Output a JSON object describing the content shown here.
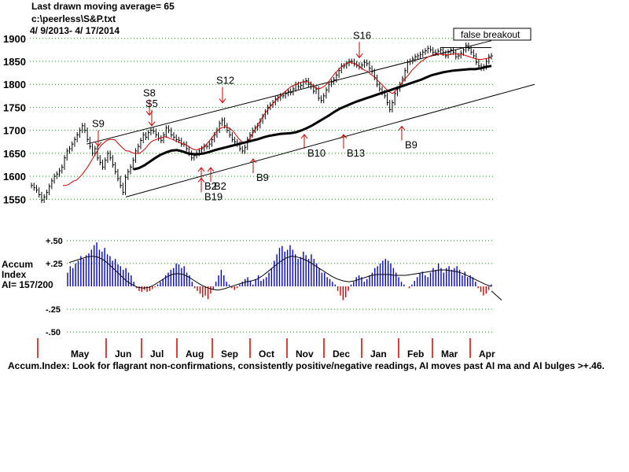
{
  "header": {
    "line1": "Last drawn moving average= 65",
    "line2": "c:\\peerless\\S&P.txt",
    "line3": " 4/ 9/2013-  4/ 17/2014"
  },
  "footer": "Accum.Index: Look for flagrant non-confirmations, consistently positive/negative readings, AI moves past AI ma and AI bulges >+.46.",
  "colors": {
    "price": "#000000",
    "ma_short": "#cc0000",
    "ma_long": "#000000",
    "grid": "#009900",
    "accum_pos": "#0000cc",
    "accum_neg": "#cc0000",
    "month_tick": "#cc0000"
  },
  "chart_data": [
    {
      "type": "line",
      "y_ticks": [
        1550,
        1600,
        1650,
        1700,
        1750,
        1800,
        1850,
        1900
      ],
      "ylim": [
        1530,
        1915
      ],
      "grid": true,
      "annotations": {
        "sells": [
          {
            "label": "S9",
            "x": 125,
            "y": 1666
          },
          {
            "label": "S8",
            "x": 190,
            "y": 1733
          },
          {
            "label": "S5",
            "x": 193,
            "y": 1710
          },
          {
            "label": "S12",
            "x": 283,
            "y": 1760
          },
          {
            "label": "S16",
            "x": 457,
            "y": 1858
          }
        ],
        "buys": [
          {
            "label": "B2",
            "x": 256,
            "y": 1588
          },
          {
            "label": "B2",
            "x": 268,
            "y": 1588
          },
          {
            "label": "B19",
            "x": 256,
            "y": 1565
          },
          {
            "label": "B9",
            "x": 322,
            "y": 1607
          },
          {
            "label": "B10",
            "x": 387,
            "y": 1660
          },
          {
            "label": "B13",
            "x": 437,
            "y": 1660
          },
          {
            "label": "B9",
            "x": 511,
            "y": 1678
          }
        ],
        "false_breakout": "false breakout"
      },
      "series": [
        {
          "values": [
            1580,
            1575,
            1570,
            1560,
            1548,
            1555,
            1565,
            1578,
            1590,
            1600,
            1605,
            1612,
            1620,
            1640,
            1655,
            1660,
            1670,
            1680,
            1690,
            1700,
            1710,
            1700,
            1680,
            1665,
            1650,
            1660,
            1640,
            1630,
            1620,
            1635,
            1650,
            1640,
            1625,
            1610,
            1595,
            1580,
            1565,
            1598,
            1610,
            1620,
            1635,
            1655,
            1665,
            1678,
            1690,
            1685,
            1695,
            1700,
            1698,
            1690,
            1683,
            1678,
            1690,
            1705,
            1700,
            1690,
            1685,
            1680,
            1678,
            1670,
            1670,
            1660,
            1650,
            1640,
            1645,
            1650,
            1655,
            1660,
            1665,
            1665,
            1670,
            1680,
            1690,
            1700,
            1715,
            1722,
            1710,
            1700,
            1690,
            1680,
            1675,
            1670,
            1660,
            1655,
            1663,
            1680,
            1690,
            1700,
            1705,
            1710,
            1720,
            1730,
            1740,
            1750,
            1755,
            1760,
            1768,
            1770,
            1775,
            1775,
            1780,
            1785,
            1782,
            1790,
            1800,
            1795,
            1798,
            1805,
            1808,
            1800,
            1795,
            1785,
            1790,
            1770,
            1765,
            1775,
            1788,
            1800,
            1805,
            1810,
            1820,
            1830,
            1840,
            1840,
            1845,
            1850,
            1850,
            1845,
            1842,
            1838,
            1842,
            1848,
            1845,
            1835,
            1828,
            1815,
            1800,
            1790,
            1782,
            1775,
            1760,
            1745,
            1760,
            1780,
            1790,
            1800,
            1812,
            1830,
            1848,
            1850,
            1855,
            1860,
            1862,
            1865,
            1870,
            1873,
            1878,
            1875,
            1870,
            1868,
            1872,
            1875,
            1868,
            1862,
            1870,
            1875,
            1870,
            1860,
            1862,
            1868,
            1875,
            1885,
            1878,
            1870,
            1862,
            1848,
            1840,
            1835,
            1838,
            1850,
            1860,
            1862
          ],
          "x_range": [
            40,
            625
          ]
        },
        {
          "values": [
            1580,
            1580,
            1582,
            1586,
            1590,
            1592,
            1598,
            1604,
            1612,
            1620,
            1630,
            1640,
            1650,
            1660,
            1668,
            1673,
            1678,
            1680,
            1680,
            1679,
            1672,
            1666,
            1660,
            1655,
            1655,
            1652,
            1650,
            1650,
            1650,
            1655,
            1660,
            1668,
            1674,
            1678,
            1680,
            1682,
            1684,
            1686,
            1685,
            1682,
            1680,
            1677,
            1675,
            1672,
            1670,
            1668,
            1664,
            1660,
            1658,
            1658,
            1660,
            1663,
            1668,
            1675,
            1682,
            1690,
            1698,
            1703,
            1706,
            1707,
            1706,
            1703,
            1698,
            1690,
            1682,
            1676,
            1672,
            1674,
            1682,
            1692,
            1702,
            1712,
            1722,
            1732,
            1740,
            1748,
            1755,
            1762,
            1768,
            1774,
            1780,
            1785,
            1790,
            1795,
            1798,
            1800,
            1803,
            1805,
            1806,
            1806,
            1803,
            1798,
            1792,
            1790,
            1792,
            1795,
            1800,
            1808,
            1816,
            1824,
            1830,
            1836,
            1840,
            1845,
            1848,
            1848,
            1845,
            1842,
            1838,
            1834,
            1830,
            1828,
            1822,
            1818,
            1812,
            1806,
            1800,
            1794,
            1788,
            1783,
            1780,
            1785,
            1792,
            1800,
            1808,
            1815,
            1822,
            1830,
            1836,
            1842,
            1848,
            1852,
            1856,
            1860,
            1862,
            1865,
            1866,
            1866,
            1865,
            1864,
            1864,
            1865,
            1866,
            1866,
            1866,
            1865,
            1864,
            1862,
            1860,
            1858,
            1856,
            1855,
            1854,
            1855,
            1856,
            1857,
            1858
          ],
          "x_range": [
            80,
            625
          ],
          "name": "ma_short"
        },
        {
          "values": [
            1615,
            1618,
            1624,
            1632,
            1640,
            1647,
            1652,
            1656,
            1657,
            1654,
            1650,
            1648,
            1648,
            1650,
            1653,
            1657,
            1660,
            1663,
            1666,
            1669,
            1672,
            1675,
            1678,
            1681,
            1685,
            1688,
            1690,
            1692,
            1693,
            1694,
            1696,
            1700,
            1705,
            1711,
            1718,
            1725,
            1732,
            1740,
            1747,
            1752,
            1757,
            1762,
            1766,
            1770,
            1774,
            1778,
            1782,
            1786,
            1790,
            1794,
            1798,
            1802,
            1806,
            1810,
            1815,
            1820,
            1823,
            1826,
            1828,
            1830,
            1831,
            1832,
            1833,
            1833,
            1835,
            1838,
            1840
          ],
          "x_range": [
            170,
            625
          ],
          "name": "ma_long"
        }
      ],
      "channel": {
        "upper": [
          [
            110,
            1670
          ],
          [
            625,
            1895
          ]
        ],
        "lower": [
          [
            160,
            1555
          ],
          [
            680,
            1800
          ]
        ]
      }
    },
    {
      "type": "bar",
      "title": "Accum Index",
      "label_lines": [
        "Accum",
        "Index",
        "AI= 157/200"
      ],
      "y_ticks": [
        0.5,
        0.25,
        -0.25,
        -0.5
      ],
      "y_tick_labels": [
        "+.50",
        "+.25",
        "-.25",
        "-.50"
      ],
      "ylim": [
        -0.55,
        0.55
      ],
      "grid": true,
      "values": [
        0.15,
        0.22,
        0.2,
        0.25,
        0.28,
        0.33,
        0.3,
        0.34,
        0.36,
        0.4,
        0.45,
        0.48,
        0.4,
        0.38,
        0.42,
        0.35,
        0.33,
        0.28,
        0.3,
        0.24,
        0.22,
        0.18,
        0.2,
        0.15,
        0.12,
        0.05,
        -0.02,
        -0.05,
        -0.06,
        -0.04,
        -0.06,
        -0.05,
        -0.03,
        -0.01,
        0.02,
        0.05,
        0.08,
        0.12,
        0.15,
        0.18,
        0.2,
        0.25,
        0.24,
        0.2,
        0.22,
        0.15,
        0.12,
        0.05,
        -0.02,
        -0.05,
        -0.08,
        -0.12,
        -0.1,
        -0.14,
        -0.08,
        -0.04,
        0.05,
        0.12,
        0.18,
        0.12,
        0.05,
        0.02,
        -0.02,
        -0.04,
        -0.02,
        0.02,
        0.05,
        0.08,
        0.1,
        0.06,
        0.02,
        0.08,
        0.12,
        0.06,
        0.08,
        0.1,
        0.15,
        0.2,
        0.28,
        0.35,
        0.42,
        0.44,
        0.38,
        0.4,
        0.45,
        0.4,
        0.35,
        0.3,
        0.32,
        0.38,
        0.34,
        0.3,
        0.35,
        0.3,
        0.25,
        0.2,
        0.15,
        0.15,
        0.1,
        0.08,
        0.05,
        0.02,
        -0.05,
        -0.1,
        -0.15,
        -0.12,
        -0.05,
        0.02,
        0.05,
        0.1,
        0.12,
        0.1,
        0.05,
        0.08,
        0.12,
        0.15,
        0.2,
        0.22,
        0.25,
        0.28,
        0.3,
        0.28,
        0.25,
        0.2,
        0.15,
        0.1,
        0.05,
        0.02,
        0.0,
        -0.02,
        0.02,
        0.06,
        0.1,
        0.14,
        0.16,
        0.12,
        0.1,
        0.15,
        0.2,
        0.18,
        0.25,
        0.2,
        0.15,
        0.2,
        0.22,
        0.18,
        0.2,
        0.22,
        0.18,
        0.12,
        0.16,
        0.1,
        0.12,
        0.1,
        0.05,
        -0.02,
        -0.06,
        -0.1,
        -0.08,
        -0.04,
        0.02
      ],
      "x_range": [
        40,
        625
      ],
      "ai_ma": [
        0.26,
        0.28,
        0.3,
        0.32,
        0.33,
        0.32,
        0.29,
        0.24,
        0.18,
        0.12,
        0.06,
        0.02,
        -0.01,
        -0.02,
        -0.01,
        0.02,
        0.06,
        0.1,
        0.13,
        0.14,
        0.13,
        0.1,
        0.06,
        0.02,
        -0.01,
        -0.03,
        -0.04,
        -0.03,
        -0.01,
        0.01,
        0.03,
        0.05,
        0.06,
        0.08,
        0.12,
        0.17,
        0.22,
        0.27,
        0.31,
        0.33,
        0.32,
        0.3,
        0.27,
        0.23,
        0.19,
        0.15,
        0.11,
        0.08,
        0.06,
        0.05,
        0.06,
        0.08,
        0.1,
        0.12,
        0.13,
        0.13,
        0.13,
        0.12,
        0.12,
        0.12,
        0.13,
        0.14,
        0.15,
        0.16,
        0.17,
        0.18,
        0.18,
        0.17,
        0.16,
        0.14,
        0.11,
        0.08,
        0.05,
        0.02,
        0.0
      ],
      "ai_ma_x_range": [
        80,
        625
      ],
      "ai_ma_extension": [
        [
          625,
          -0.05
        ],
        [
          638,
          -0.15
        ]
      ],
      "months": [
        "May",
        "Jun",
        "Jul",
        "Aug",
        "Sep",
        "Oct",
        "Nov",
        "Dec",
        "Jan",
        "Feb",
        "Mar",
        "Apr"
      ]
    }
  ]
}
